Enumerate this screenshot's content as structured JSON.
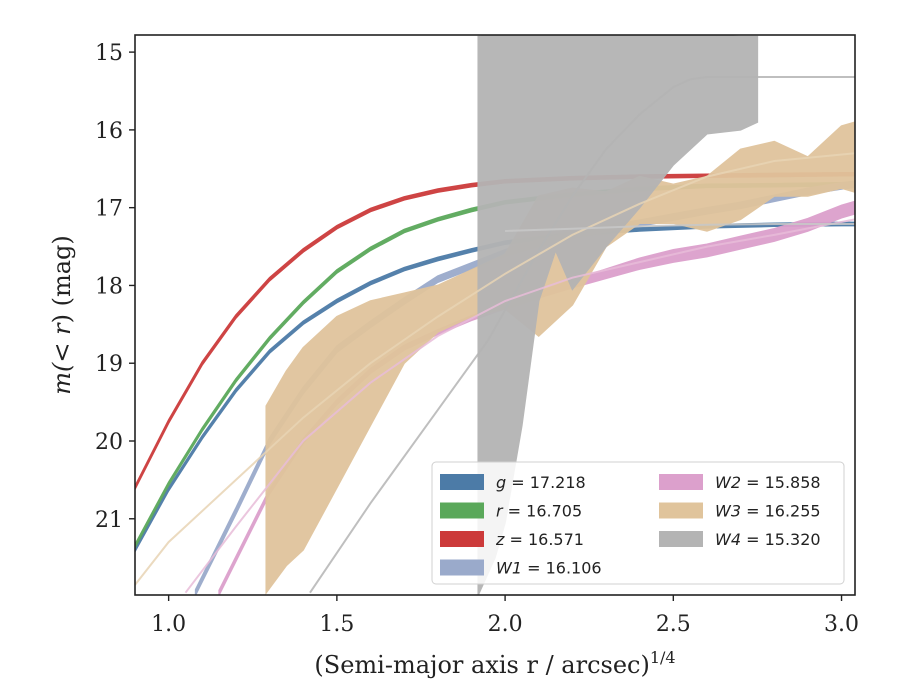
{
  "chart_data": {
    "type": "line",
    "xlabel": "(Semi-major axis r / arcsec)",
    "xlabel_sup": "1/4",
    "ylabel_pre": "m(",
    "ylabel_mid": "< r",
    "ylabel_post": ") (mag)",
    "xlim": [
      0.9,
      3.04
    ],
    "ylim": [
      21.98,
      14.78
    ],
    "y_inverted": true,
    "grid": false,
    "legend_position": "lower-right",
    "x_ticks": [
      1.0,
      1.5,
      2.0,
      2.5,
      3.0
    ],
    "x_tick_labels": [
      "1.0",
      "1.5",
      "2.0",
      "2.5",
      "3.0"
    ],
    "y_ticks": [
      15,
      16,
      17,
      18,
      19,
      20,
      21
    ],
    "y_tick_labels": [
      "15",
      "16",
      "17",
      "18",
      "19",
      "20",
      "21"
    ],
    "series": [
      {
        "name": "g = 17.218",
        "sym": "g",
        "mag": "17.218",
        "color": "#4c7ba7",
        "kind": "band",
        "x": [
          0.9,
          1.0,
          1.1,
          1.2,
          1.3,
          1.4,
          1.5,
          1.6,
          1.7,
          1.8,
          1.9,
          2.0,
          2.2,
          2.4,
          2.6,
          2.8,
          3.0,
          3.04
        ],
        "y": [
          21.4,
          20.62,
          19.95,
          19.35,
          18.85,
          18.48,
          18.2,
          17.97,
          17.79,
          17.66,
          17.55,
          17.45,
          17.34,
          17.28,
          17.24,
          17.22,
          17.21,
          17.21
        ],
        "err": [
          0.02,
          0.02,
          0.02,
          0.02,
          0.02,
          0.02,
          0.02,
          0.02,
          0.02,
          0.02,
          0.02,
          0.02,
          0.02,
          0.02,
          0.02,
          0.02,
          0.02,
          0.02
        ]
      },
      {
        "name": "r = 16.705",
        "sym": "r",
        "mag": "16.705",
        "color": "#5aa85a",
        "kind": "band",
        "x": [
          0.9,
          1.0,
          1.1,
          1.2,
          1.3,
          1.4,
          1.5,
          1.6,
          1.7,
          1.8,
          1.9,
          2.0,
          2.2,
          2.4,
          2.6,
          2.8,
          3.0,
          3.04
        ],
        "y": [
          21.35,
          20.55,
          19.85,
          19.22,
          18.68,
          18.22,
          17.82,
          17.53,
          17.3,
          17.15,
          17.03,
          16.93,
          16.83,
          16.76,
          16.72,
          16.71,
          16.7,
          16.7
        ],
        "err": [
          0.02,
          0.02,
          0.02,
          0.02,
          0.02,
          0.02,
          0.02,
          0.02,
          0.02,
          0.02,
          0.02,
          0.02,
          0.02,
          0.02,
          0.02,
          0.02,
          0.02,
          0.02
        ]
      },
      {
        "name": "z = 16.571",
        "sym": "z",
        "mag": "16.571",
        "color": "#cc3a3a",
        "kind": "band",
        "x": [
          0.9,
          1.0,
          1.1,
          1.2,
          1.3,
          1.4,
          1.5,
          1.6,
          1.7,
          1.8,
          1.9,
          2.0,
          2.2,
          2.4,
          2.6,
          2.8,
          3.0,
          3.04
        ],
        "y": [
          20.6,
          19.75,
          19.0,
          18.4,
          17.92,
          17.55,
          17.25,
          17.03,
          16.88,
          16.78,
          16.71,
          16.66,
          16.62,
          16.6,
          16.59,
          16.58,
          16.57,
          16.57
        ],
        "err": [
          0.02,
          0.02,
          0.02,
          0.02,
          0.02,
          0.02,
          0.02,
          0.02,
          0.02,
          0.02,
          0.02,
          0.02,
          0.02,
          0.02,
          0.02,
          0.02,
          0.02,
          0.02
        ]
      },
      {
        "name": "W1 = 16.106",
        "sym": "W1",
        "mag": "16.106",
        "color": "#9aaacb",
        "kind": "band",
        "x": [
          1.08,
          1.2,
          1.3,
          1.4,
          1.5,
          1.6,
          1.7,
          1.8,
          1.9,
          2.0,
          2.1,
          2.2,
          2.3,
          2.4,
          2.5,
          2.6,
          2.7,
          2.8,
          2.9,
          3.0,
          3.04
        ],
        "y": [
          21.95,
          20.9,
          20.0,
          19.35,
          18.82,
          18.5,
          18.2,
          17.92,
          17.75,
          17.58,
          17.45,
          17.35,
          17.27,
          17.2,
          17.12,
          17.04,
          16.97,
          16.88,
          16.79,
          16.72,
          16.7
        ],
        "err": [
          0.04,
          0.04,
          0.04,
          0.04,
          0.04,
          0.04,
          0.04,
          0.04,
          0.04,
          0.04,
          0.04,
          0.04,
          0.04,
          0.04,
          0.04,
          0.04,
          0.04,
          0.04,
          0.04,
          0.04,
          0.04
        ]
      },
      {
        "name": "W2 = 15.858",
        "sym": "W2",
        "mag": "15.858",
        "color": "#dca0cc",
        "kind": "band",
        "x": [
          1.15,
          1.3,
          1.4,
          1.5,
          1.6,
          1.7,
          1.8,
          1.9,
          2.0,
          2.1,
          2.2,
          2.3,
          2.4,
          2.5,
          2.6,
          2.7,
          2.8,
          2.9,
          3.0,
          3.04
        ],
        "y": [
          21.95,
          20.65,
          20.0,
          19.5,
          19.1,
          18.8,
          18.6,
          18.42,
          18.27,
          18.12,
          17.98,
          17.85,
          17.72,
          17.62,
          17.55,
          17.45,
          17.35,
          17.22,
          17.05,
          17.0
        ],
        "err": [
          0.03,
          0.03,
          0.03,
          0.03,
          0.03,
          0.03,
          0.03,
          0.03,
          0.03,
          0.04,
          0.05,
          0.06,
          0.07,
          0.08,
          0.08,
          0.08,
          0.08,
          0.08,
          0.08,
          0.08
        ]
      },
      {
        "name": "W3 = 16.255",
        "sym": "W3",
        "mag": "16.255",
        "color": "#e0c49c",
        "kind": "band",
        "x": [
          1.29,
          1.35,
          1.4,
          1.5,
          1.6,
          1.7,
          1.8,
          1.9,
          2.0,
          2.1,
          2.2,
          2.3,
          2.4,
          2.5,
          2.6,
          2.7,
          2.8,
          2.9,
          3.0,
          3.04
        ],
        "y": [
          20.75,
          20.35,
          20.1,
          19.5,
          19.0,
          18.55,
          18.3,
          18.1,
          17.95,
          17.75,
          17.5,
          17.15,
          16.9,
          16.95,
          16.95,
          16.7,
          16.5,
          16.6,
          16.35,
          16.35
        ],
        "err": [
          1.2,
          1.25,
          1.3,
          1.1,
          0.8,
          0.45,
          0.3,
          0.3,
          0.35,
          0.9,
          0.75,
          0.35,
          0.3,
          0.25,
          0.35,
          0.45,
          0.35,
          0.25,
          0.4,
          0.45
        ]
      },
      {
        "name": "W4 = 15.320",
        "sym": "W4",
        "mag": "15.320",
        "color": "#b4b4b4",
        "kind": "band",
        "x": [
          1.92,
          1.97,
          2.0,
          2.05,
          2.1,
          2.15,
          2.2,
          2.3,
          2.4,
          2.5,
          2.6,
          2.7,
          2.75
        ],
        "y": [
          18.4,
          17.9,
          17.45,
          16.2,
          15.5,
          15.85,
          16.05,
          16.0,
          15.8,
          15.45,
          15.15,
          15.4,
          15.35
        ],
        "err": [
          3.6,
          3.6,
          3.6,
          3.6,
          2.7,
          1.7,
          2.0,
          1.5,
          1.2,
          1.0,
          0.9,
          0.6,
          0.55
        ]
      }
    ],
    "model_curves": [
      {
        "color": "#b4b4b4",
        "x": [
          1.42,
          1.6,
          1.8,
          1.95,
          2.1,
          2.2,
          2.3,
          2.4,
          2.5,
          2.55,
          2.6,
          2.8,
          3.04
        ],
        "y": [
          21.95,
          20.8,
          19.6,
          18.7,
          17.55,
          16.85,
          16.25,
          15.8,
          15.45,
          15.35,
          15.32,
          15.32,
          15.32
        ]
      },
      {
        "color": "#e8d4b4",
        "x": [
          0.9,
          1.0,
          1.2,
          1.4,
          1.6,
          1.8,
          2.0,
          2.2,
          2.4,
          2.6,
          2.8,
          3.04
        ],
        "y": [
          21.85,
          21.3,
          20.5,
          19.7,
          19.0,
          18.4,
          17.85,
          17.35,
          16.95,
          16.6,
          16.4,
          16.3
        ]
      },
      {
        "color": "#e8bcd8",
        "x": [
          1.05,
          1.2,
          1.4,
          1.6,
          1.8,
          2.0,
          2.2,
          2.4,
          2.6,
          2.8,
          3.04
        ],
        "y": [
          21.95,
          21.1,
          20.0,
          19.25,
          18.65,
          18.2,
          17.9,
          17.7,
          17.5,
          17.35,
          17.15
        ]
      },
      {
        "color": "#c8c8c8",
        "x": [
          2.0,
          2.2,
          2.4,
          2.6,
          2.8,
          3.04
        ],
        "y": [
          17.3,
          17.27,
          17.24,
          17.22,
          17.21,
          17.21
        ]
      }
    ]
  }
}
